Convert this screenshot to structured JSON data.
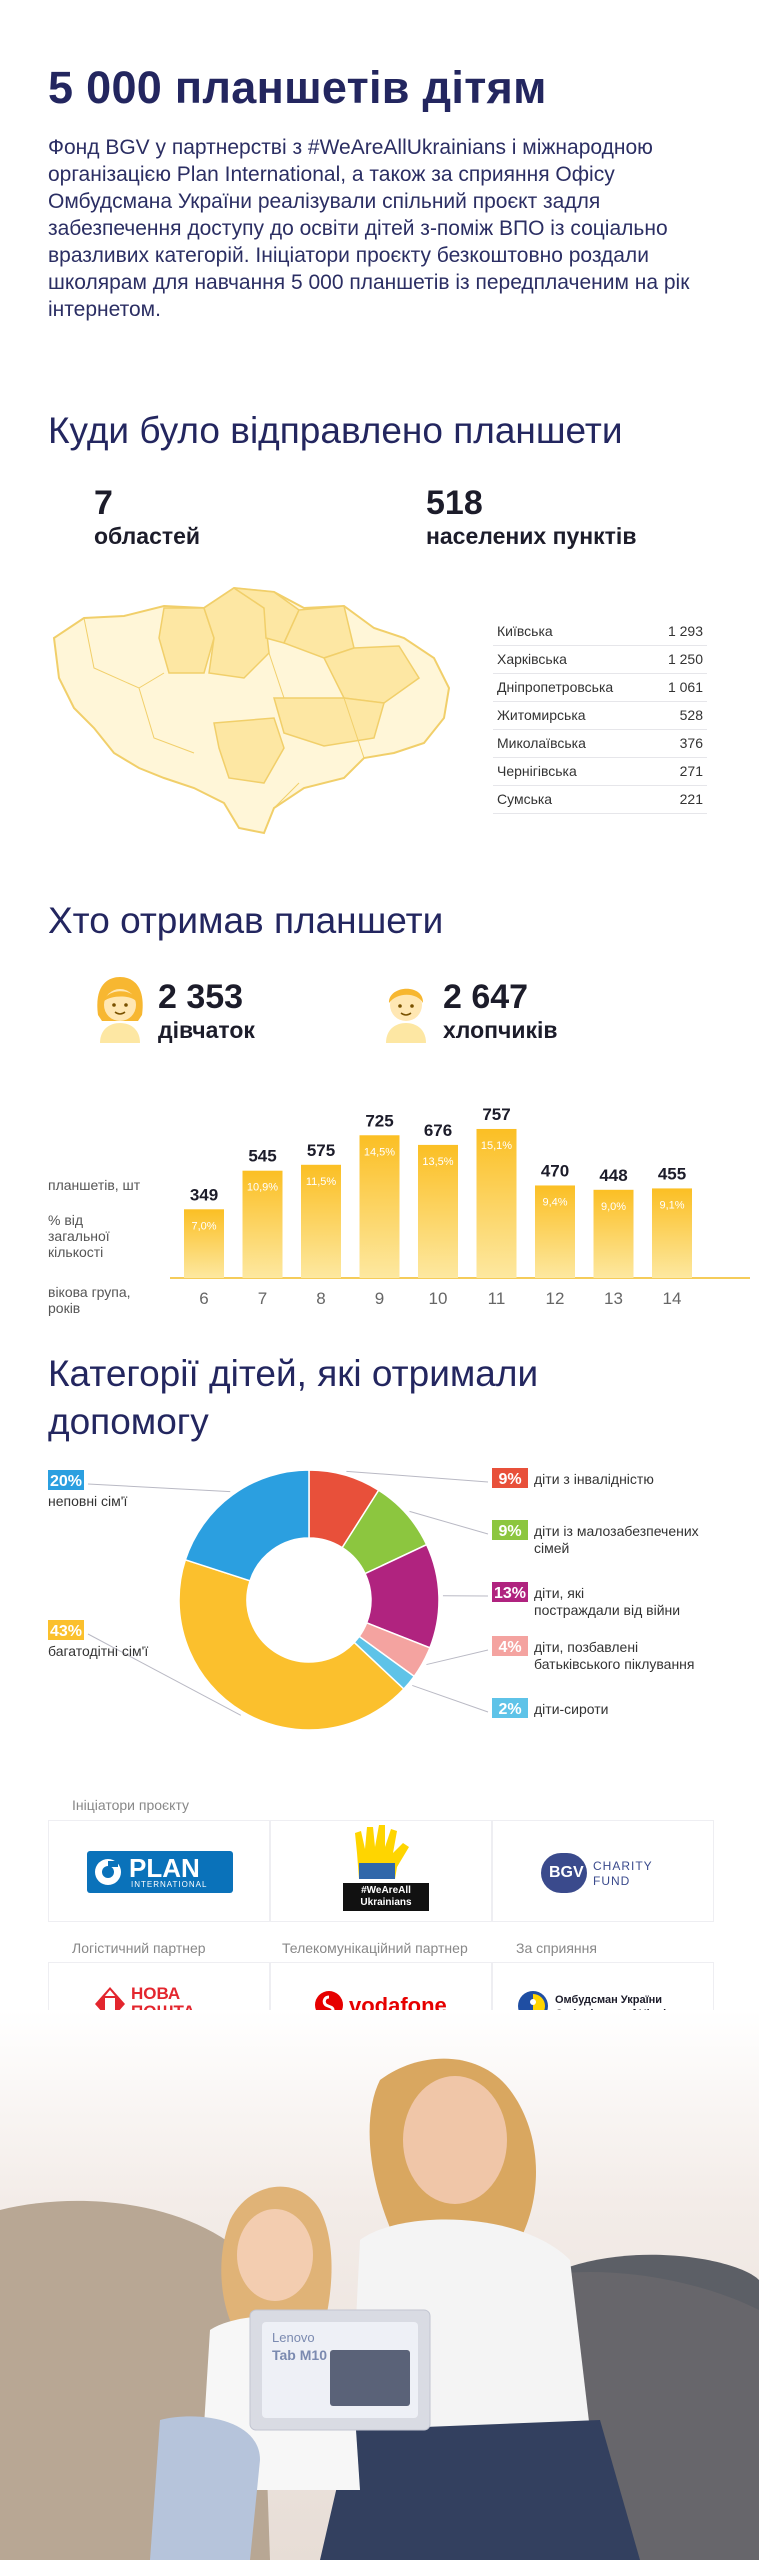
{
  "title": "5 000 планшетів дітям",
  "intro": "Фонд BGV у партнерстві з #WeAreAllUkrainians і міжнародною організацією Plan International, а також за сприяння Офісу Омбудсмана України реалізували спільний проєкт задля забезпечення доступу до освіти дітей з-поміж ВПО із соціально вразливих категорій. Ініціатори проєкту безкоштовно роздали школярам для навчання 5 000 планшетів із передплаченим на рік інтернетом.",
  "section_sent": {
    "heading": "Куди було відправлено планшети",
    "stat1": {
      "number": "7",
      "label": "областей"
    },
    "stat2": {
      "number": "518",
      "label": "населених пунктів"
    }
  },
  "section_recipients": {
    "heading": "Хто отримав планшети",
    "girls": {
      "number": "2 353",
      "label": "дівчаток"
    },
    "boys": {
      "number": "2 647",
      "label": "хлопчиків"
    },
    "label_tablets": "планшетів, шт",
    "label_pct": "% від загальної кількості",
    "label_age": "вікова група, років"
  },
  "section_categories": {
    "heading": "Категорії дітей, які отримали допомогу"
  },
  "logos": {
    "initiators_caption": "Ініціатори проєкту",
    "logistics_caption": "Логістичний партнер",
    "telecom_caption": "Телекомунікаційний партнер",
    "support_caption": "За сприяння",
    "plan": "PLAN",
    "plan_sub": "INTERNATIONAL",
    "wearall": "#WeAreAll Ukrainians",
    "bgv": "BGV",
    "bgv_sub": "CHARITY FUND",
    "nova1": "НОВА",
    "nova2": "ПОШТА",
    "vodafone": "vodafone",
    "ombud1": "Омбудсман України",
    "ombud2": "Ombudsman of Ukraine"
  },
  "photo": {
    "tablet_brand": "Lenovo",
    "tablet_model": "Tab M10 HD"
  },
  "colors": {
    "navy": "#23265f",
    "yellow": "#fbc02d",
    "red": "#e8503a",
    "green": "#8cc63f",
    "magenta": "#b0237f",
    "pink": "#f4a3a0",
    "lightblue": "#5ec3e8",
    "blue": "#2b9fe0"
  },
  "chart_data": [
    {
      "type": "table",
      "rows": [
        {
          "region": "Київська",
          "value": "1 293"
        },
        {
          "region": "Харківська",
          "value": "1 250"
        },
        {
          "region": "Дніпропетровська",
          "value": "1 061"
        },
        {
          "region": "Житомирська",
          "value": "528"
        },
        {
          "region": "Миколаївська",
          "value": "376"
        },
        {
          "region": "Чернігівська",
          "value": "271"
        },
        {
          "region": "Сумська",
          "value": "221"
        }
      ]
    },
    {
      "type": "bar",
      "categories": [
        "6",
        "7",
        "8",
        "9",
        "10",
        "11",
        "12",
        "13",
        "14"
      ],
      "values": [
        349,
        545,
        575,
        725,
        676,
        757,
        470,
        448,
        455
      ],
      "pct_labels": [
        "7,0%",
        "10,9%",
        "11,5%",
        "14,5%",
        "13,5%",
        "15,1%",
        "9,4%",
        "9,0%",
        "9,1%"
      ],
      "ylim": [
        0,
        800
      ]
    },
    {
      "type": "pie",
      "slices": [
        {
          "pct": "9%",
          "value": 9,
          "label": "діти з інвалідністю",
          "color": "#e8503a"
        },
        {
          "pct": "9%",
          "value": 9,
          "label": "діти із малозабезпечених сімей",
          "color": "#8cc63f"
        },
        {
          "pct": "13%",
          "value": 13,
          "label": "діти, які постраждали від війни",
          "color": "#b0237f"
        },
        {
          "pct": "4%",
          "value": 4,
          "label": "діти, позбавлені батьківського піклування",
          "color": "#f4a3a0"
        },
        {
          "pct": "2%",
          "value": 2,
          "label": "діти-сироти",
          "color": "#5ec3e8"
        },
        {
          "pct": "43%",
          "value": 43,
          "label": "багатодітні сім'ї",
          "color": "#fbc02d"
        },
        {
          "pct": "20%",
          "value": 20,
          "label": "неповні сім'ї",
          "color": "#2b9fe0"
        }
      ]
    }
  ]
}
